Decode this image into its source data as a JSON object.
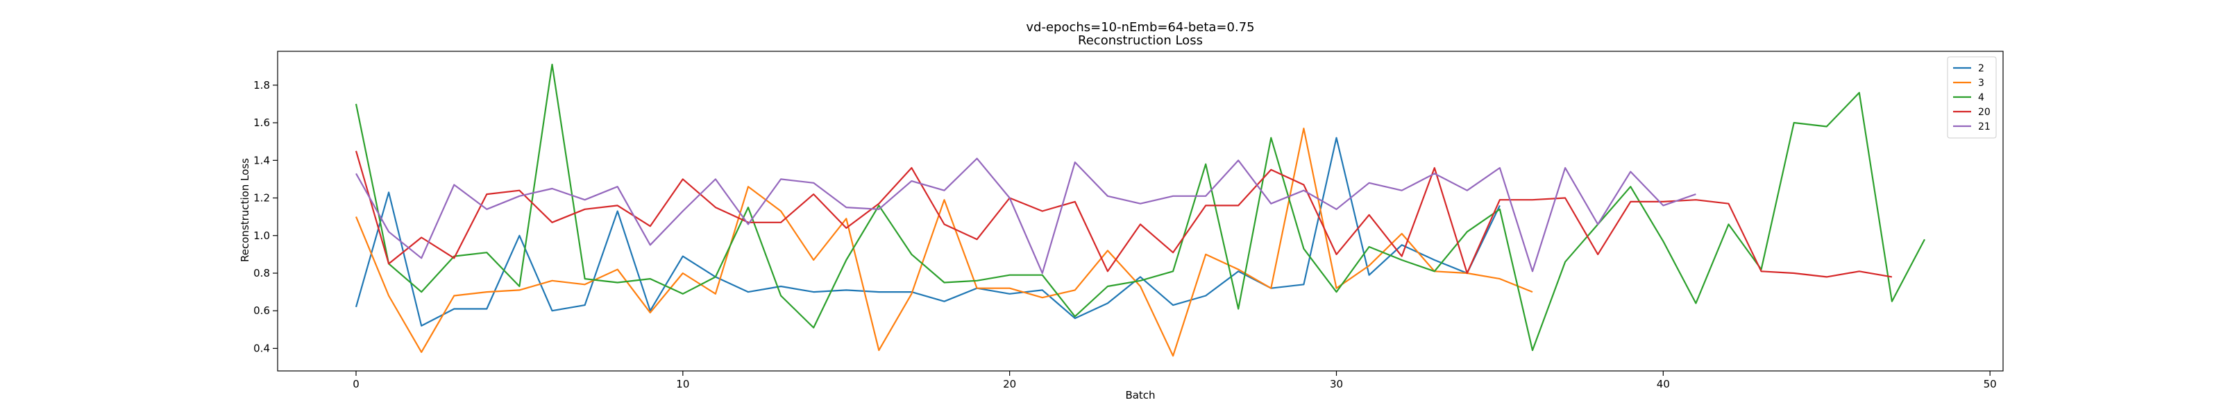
{
  "chart_data": {
    "type": "line",
    "title": "vd-epochs=10-nEmb=64-beta=0.75",
    "subtitle": "Reconstruction Loss",
    "xlabel": "Batch",
    "ylabel": "Reconstruction Loss",
    "xlim": [
      -2.4,
      50.4
    ],
    "ylim": [
      0.28,
      1.98
    ],
    "xticks": [
      0,
      10,
      20,
      30,
      40,
      50
    ],
    "yticks": [
      0.4,
      0.6,
      0.8,
      1.0,
      1.2,
      1.4,
      1.6,
      1.8
    ],
    "xtick_labels": [
      "0",
      "10",
      "20",
      "30",
      "40",
      "50"
    ],
    "ytick_labels": [
      "0.4",
      "0.6",
      "0.8",
      "1.0",
      "1.2",
      "1.4",
      "1.6",
      "1.8"
    ],
    "grid": false,
    "legend_position": "top-right",
    "series": [
      {
        "name": "2",
        "color": "#1f77b4",
        "values": [
          0.62,
          1.23,
          0.52,
          0.61,
          0.61,
          1.0,
          0.6,
          0.63,
          1.13,
          0.6,
          0.89,
          0.78,
          0.7,
          0.73,
          0.7,
          0.71,
          0.7,
          0.7,
          0.65,
          0.72,
          0.69,
          0.71,
          0.56,
          0.64,
          0.78,
          0.63,
          0.68,
          0.81,
          0.72,
          0.74,
          1.52,
          0.79,
          0.95,
          0.87,
          0.8,
          1.16
        ]
      },
      {
        "name": "3",
        "color": "#ff7f0e",
        "values": [
          1.1,
          0.68,
          0.38,
          0.68,
          0.7,
          0.71,
          0.76,
          0.74,
          0.82,
          0.59,
          0.8,
          0.69,
          1.26,
          1.13,
          0.87,
          1.09,
          0.39,
          0.69,
          1.19,
          0.72,
          0.72,
          0.67,
          0.71,
          0.92,
          0.73,
          0.36,
          0.9,
          0.82,
          0.72,
          1.57,
          0.72,
          0.84,
          1.01,
          0.81,
          0.8,
          0.77,
          0.7
        ]
      },
      {
        "name": "4",
        "color": "#2ca02c",
        "values": [
          1.7,
          0.85,
          0.7,
          0.89,
          0.91,
          0.73,
          1.91,
          0.77,
          0.75,
          0.77,
          0.69,
          0.78,
          1.15,
          0.68,
          0.51,
          0.87,
          1.16,
          0.9,
          0.75,
          0.76,
          0.79,
          0.79,
          0.57,
          0.73,
          0.76,
          0.81,
          1.38,
          0.61,
          1.52,
          0.93,
          0.7,
          0.94,
          0.87,
          0.81,
          1.02,
          1.14,
          0.39,
          0.86,
          1.06,
          1.26,
          0.97,
          0.64,
          1.06,
          0.82,
          1.6,
          1.58,
          1.76,
          0.65,
          0.98
        ]
      },
      {
        "name": "20",
        "color": "#d62728",
        "values": [
          1.45,
          0.85,
          0.99,
          0.88,
          1.22,
          1.24,
          1.07,
          1.14,
          1.16,
          1.05,
          1.3,
          1.15,
          1.07,
          1.07,
          1.22,
          1.04,
          1.17,
          1.36,
          1.06,
          0.98,
          1.2,
          1.13,
          1.18,
          0.81,
          1.06,
          0.91,
          1.16,
          1.16,
          1.35,
          1.27,
          0.9,
          1.11,
          0.89,
          1.36,
          0.8,
          1.19,
          1.19,
          1.2,
          0.9,
          1.18,
          1.18,
          1.19,
          1.17,
          0.81,
          0.8,
          0.78,
          0.81,
          0.78
        ]
      },
      {
        "name": "21",
        "color": "#9467bd",
        "values": [
          1.33,
          1.02,
          0.88,
          1.27,
          1.14,
          1.21,
          1.25,
          1.19,
          1.26,
          0.95,
          1.13,
          1.3,
          1.06,
          1.3,
          1.28,
          1.15,
          1.14,
          1.29,
          1.24,
          1.41,
          1.2,
          0.8,
          1.39,
          1.21,
          1.17,
          1.21,
          1.21,
          1.4,
          1.17,
          1.24,
          1.14,
          1.28,
          1.24,
          1.33,
          1.24,
          1.36,
          0.81,
          1.36,
          1.06,
          1.34,
          1.16,
          1.22
        ]
      }
    ]
  }
}
